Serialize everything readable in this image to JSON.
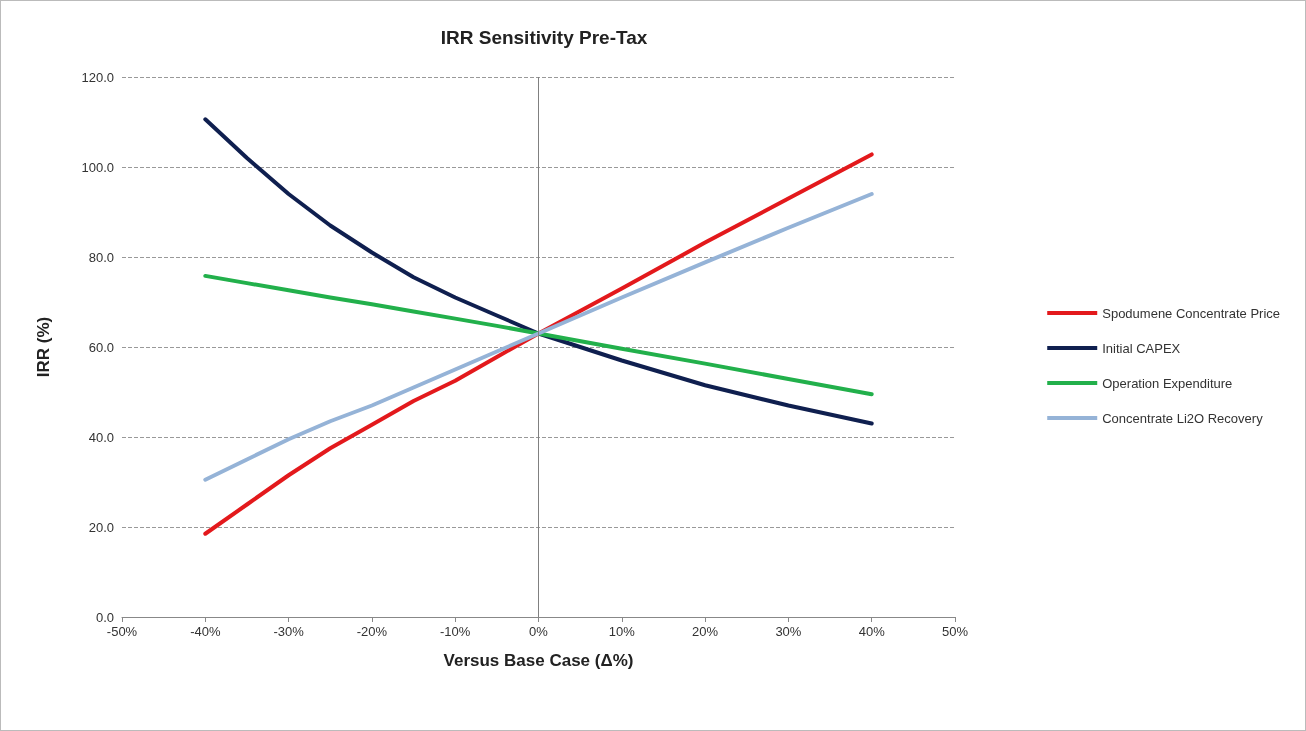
{
  "chart_data": {
    "type": "line",
    "title": "IRR Sensitivity Pre-Tax",
    "xlabel": "Versus Base Case (Δ%)",
    "ylabel": "IRR (%)",
    "x": [
      -40,
      -35,
      -30,
      -25,
      -20,
      -15,
      -10,
      -5,
      0,
      10,
      20,
      30,
      40
    ],
    "series": [
      {
        "name": "Spodumene Concentrate Price",
        "color": "#e3191c",
        "values": [
          18.5,
          25,
          31.5,
          37.5,
          42.7,
          48,
          52.5,
          57.8,
          63,
          73,
          83.2,
          93,
          102.8
        ]
      },
      {
        "name": "Initial CAPEX",
        "color": "#0f1f4f",
        "values": [
          110.6,
          102,
          94,
          87,
          81,
          75.5,
          71,
          67,
          63,
          57,
          51.5,
          47,
          43
        ]
      },
      {
        "name": "Operation Expenditure",
        "color": "#22b04b",
        "values": [
          75.8,
          74.2,
          72.6,
          71,
          69.5,
          67.9,
          66.3,
          64.7,
          63,
          59.6,
          56.3,
          52.9,
          49.5
        ]
      },
      {
        "name": "Concentrate Li2O Recovery",
        "color": "#95b3d7",
        "values": [
          30.5,
          35,
          39.5,
          43.5,
          47,
          51,
          55,
          59,
          63,
          71,
          78.8,
          86.5,
          94
        ]
      }
    ],
    "xlim": [
      -50,
      50
    ],
    "xticks": [
      {
        "value": -50,
        "label": "-50%"
      },
      {
        "value": -40,
        "label": "-40%"
      },
      {
        "value": -30,
        "label": "-30%"
      },
      {
        "value": -20,
        "label": "-20%"
      },
      {
        "value": -10,
        "label": "-10%"
      },
      {
        "value": 0,
        "label": "0%"
      },
      {
        "value": 10,
        "label": "10%"
      },
      {
        "value": 20,
        "label": "20%"
      },
      {
        "value": 30,
        "label": "30%"
      },
      {
        "value": 40,
        "label": "40%"
      },
      {
        "value": 50,
        "label": "50%"
      }
    ],
    "ylim": [
      0,
      120
    ],
    "yticks": [
      {
        "value": 0,
        "label": "0.0"
      },
      {
        "value": 20,
        "label": "20.0"
      },
      {
        "value": 40,
        "label": "40.0"
      },
      {
        "value": 60,
        "label": "60.0"
      },
      {
        "value": 80,
        "label": "80.0"
      },
      {
        "value": 100,
        "label": "100.0"
      },
      {
        "value": 120,
        "label": "120.0"
      }
    ],
    "ref_lines": [
      {
        "axis": "x",
        "value": 0,
        "color": "#808080"
      }
    ],
    "grid": "y",
    "legend": "right",
    "marker": "none",
    "line_style": "solid"
  }
}
